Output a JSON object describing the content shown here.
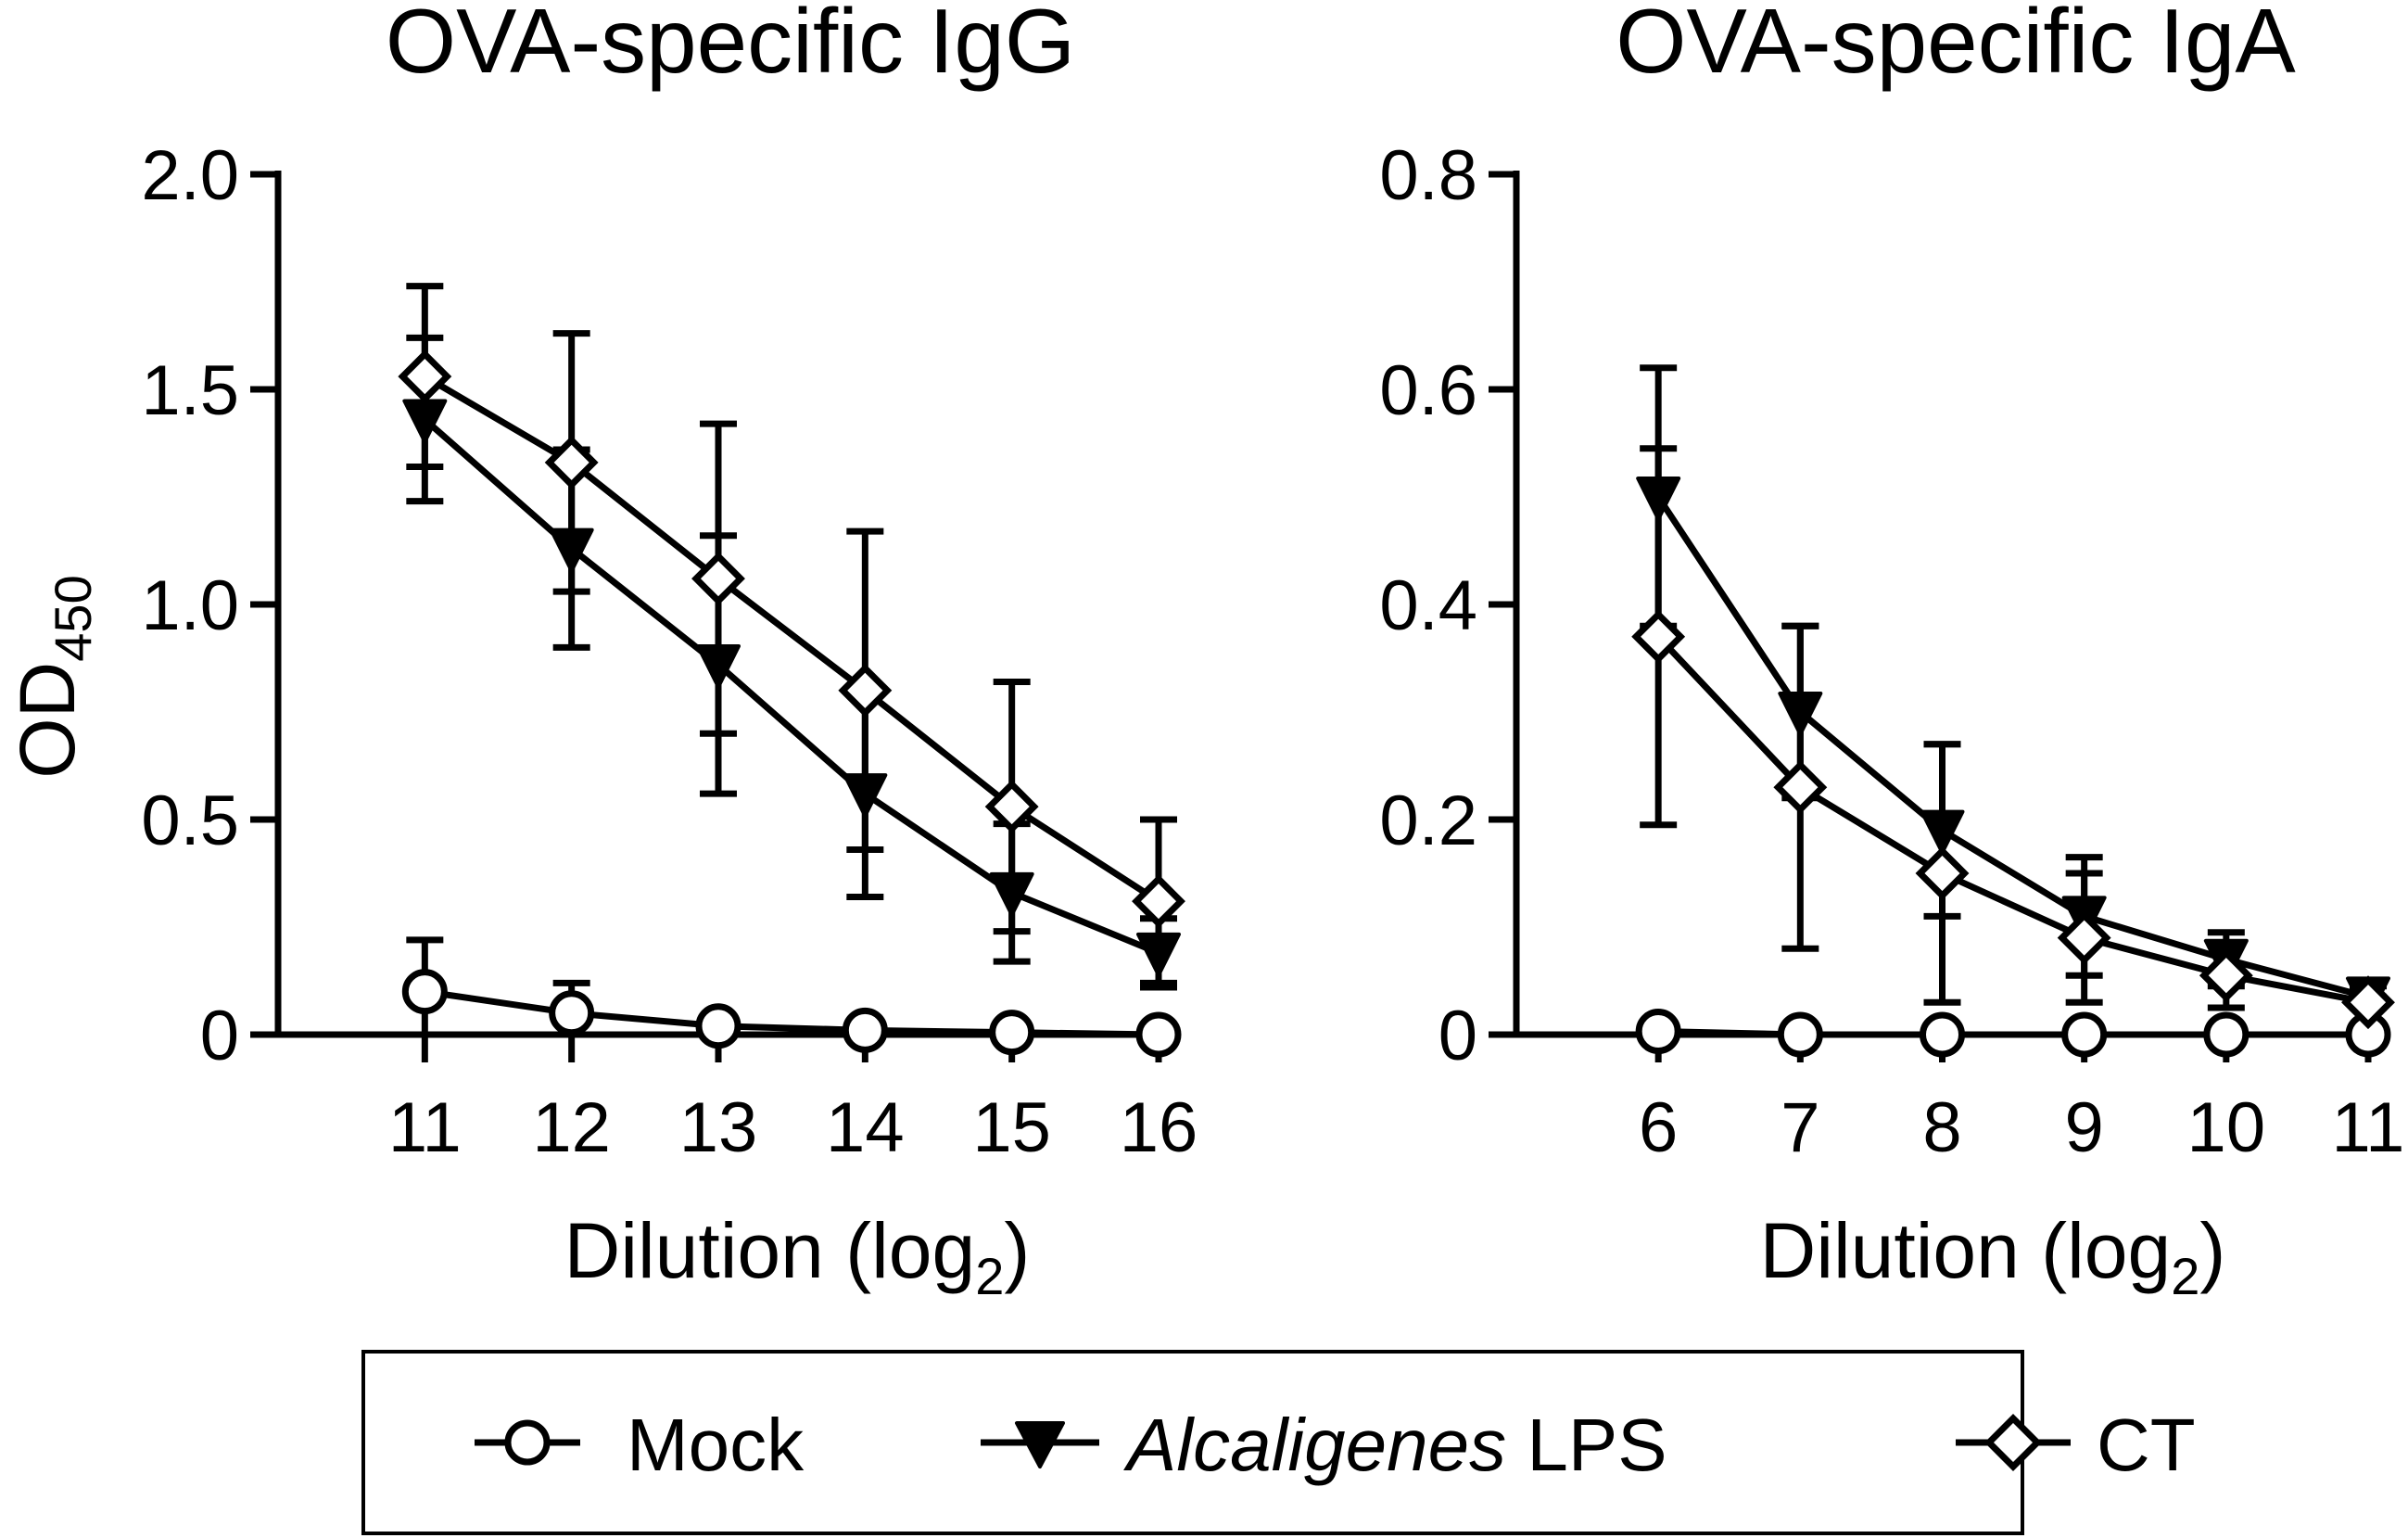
{
  "chart_data": [
    {
      "type": "line",
      "title": "OVA-specific IgG",
      "ylabel": "OD",
      "ylabel_sub": "450",
      "xlabel": "Dilution (log",
      "xlabel_sub": "2",
      "xlabel_close": ")",
      "ylim": [
        0,
        2.0
      ],
      "yticks": [
        0,
        0.5,
        1.0,
        1.5,
        2.0
      ],
      "ytick_labels": [
        "0",
        "0.5",
        "1.0",
        "1.5",
        "2.0"
      ],
      "xlim": [
        10,
        16
      ],
      "x": [
        11,
        12,
        13,
        14,
        15,
        16
      ],
      "xtick_labels": [
        "11",
        "12",
        "13",
        "14",
        "15",
        "16"
      ],
      "series": [
        {
          "name": "Mock",
          "values": [
            0.1,
            0.05,
            0.02,
            0.01,
            0.005,
            0.0
          ],
          "errors": [
            0.12,
            0.07,
            0.0,
            0.0,
            0.0,
            0.0
          ]
        },
        {
          "name": "Alcaligenes LPS",
          "values": [
            1.43,
            1.13,
            0.86,
            0.56,
            0.33,
            0.19
          ],
          "errors": [
            0.19,
            0.23,
            0.3,
            0.24,
            0.16,
            0.08
          ]
        },
        {
          "name": "CT",
          "values": [
            1.53,
            1.33,
            1.06,
            0.8,
            0.53,
            0.31
          ],
          "errors": [
            0.21,
            0.3,
            0.36,
            0.37,
            0.29,
            0.19
          ]
        }
      ]
    },
    {
      "type": "line",
      "title": "OVA-specific IgA",
      "xlabel": "Dilution (log",
      "xlabel_sub": "2",
      "xlabel_close": ")",
      "ylim": [
        0,
        0.8
      ],
      "yticks": [
        0,
        0.2,
        0.4,
        0.6,
        0.8
      ],
      "ytick_labels": [
        "0",
        "0.2",
        "0.4",
        "0.6",
        "0.8"
      ],
      "xlim": [
        5,
        11
      ],
      "x": [
        6,
        7,
        8,
        9,
        10,
        11
      ],
      "xtick_labels": [
        "6",
        "7",
        "8",
        "9",
        "10",
        "11"
      ],
      "series": [
        {
          "name": "Mock",
          "values": [
            0.003,
            0.0,
            0.0,
            0.0,
            0.0,
            0.0
          ],
          "errors": [
            0,
            0,
            0,
            0,
            0,
            0
          ]
        },
        {
          "name": "Alcaligenes LPS",
          "values": [
            0.5,
            0.3,
            0.19,
            0.11,
            0.07,
            0.035
          ],
          "errors": [
            0.12,
            0.08,
            0.08,
            0.055,
            0.025,
            0.01
          ]
        },
        {
          "name": "CT",
          "values": [
            0.37,
            0.23,
            0.15,
            0.09,
            0.055,
            0.03
          ],
          "errors": [
            0.175,
            0.15,
            0.12,
            0.06,
            0.03,
            0.005
          ]
        }
      ]
    }
  ],
  "legend": {
    "items": [
      {
        "label": "Mock",
        "marker": "open-circle"
      },
      {
        "label_italic": "Alcaligenes",
        "label_rest": " LPS",
        "marker": "filled-triangle-down"
      },
      {
        "label": "CT",
        "marker": "open-diamond"
      }
    ]
  }
}
